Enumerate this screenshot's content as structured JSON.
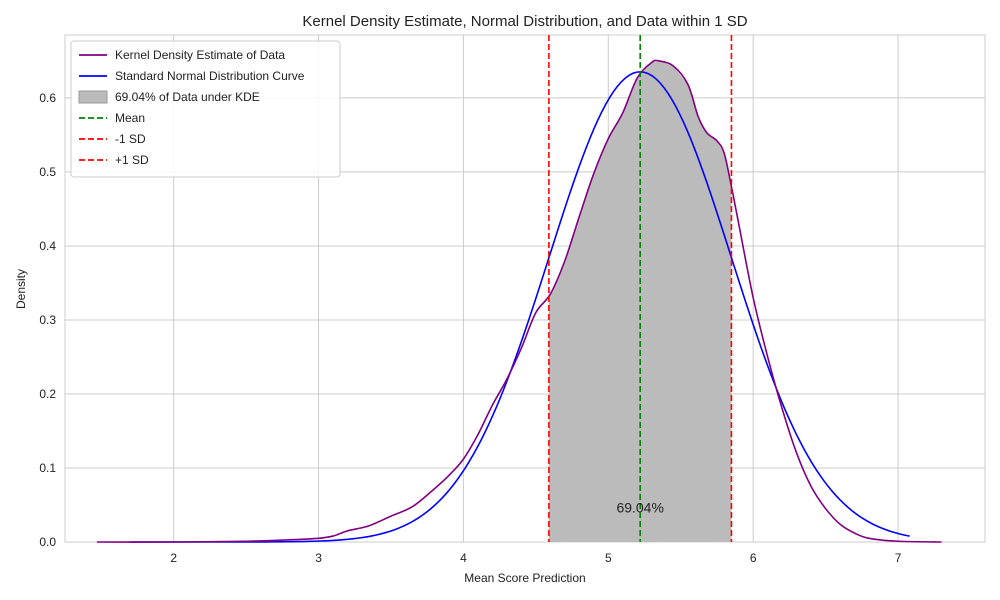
{
  "chart_data": {
    "type": "line",
    "title": "Kernel Density Estimate, Normal Distribution, and Data within 1 SD",
    "xlabel": "Mean Score Prediction",
    "ylabel": "Density",
    "xlim": [
      1.25,
      7.6
    ],
    "ylim": [
      0,
      0.685
    ],
    "xticks": [
      2,
      3,
      4,
      5,
      6,
      7
    ],
    "yticks": [
      0.0,
      0.1,
      0.2,
      0.3,
      0.4,
      0.5,
      0.6
    ],
    "grid": true,
    "legend_position": "top-left",
    "series": [
      {
        "name": "Kernel Density Estimate of Data",
        "kind": "line",
        "color": "#800080",
        "x": [
          1.47,
          2.0,
          2.5,
          2.8,
          3.0,
          3.1,
          3.2,
          3.35,
          3.5,
          3.65,
          3.8,
          3.9,
          4.0,
          4.1,
          4.2,
          4.3,
          4.4,
          4.5,
          4.6,
          4.7,
          4.8,
          4.9,
          5.0,
          5.1,
          5.2,
          5.3,
          5.35,
          5.45,
          5.55,
          5.62,
          5.68,
          5.75,
          5.8,
          5.85,
          5.9,
          6.0,
          6.1,
          6.2,
          6.3,
          6.4,
          6.5,
          6.6,
          6.7,
          6.8,
          7.0,
          7.3
        ],
        "y": [
          0.0,
          0.0,
          0.001,
          0.003,
          0.005,
          0.008,
          0.015,
          0.022,
          0.035,
          0.048,
          0.072,
          0.09,
          0.112,
          0.145,
          0.185,
          0.22,
          0.262,
          0.31,
          0.335,
          0.38,
          0.44,
          0.498,
          0.545,
          0.58,
          0.627,
          0.648,
          0.65,
          0.643,
          0.618,
          0.575,
          0.553,
          0.542,
          0.525,
          0.48,
          0.43,
          0.33,
          0.25,
          0.18,
          0.12,
          0.075,
          0.045,
          0.024,
          0.012,
          0.005,
          0.001,
          0.0
        ]
      },
      {
        "name": "Standard Normal Distribution Curve",
        "kind": "line",
        "color": "#0000ff",
        "mean": 5.22,
        "sd": 0.628,
        "x_range": [
          1.7,
          7.08
        ]
      },
      {
        "name": "69.04% of Data under KDE",
        "kind": "fill",
        "color": "#bbbbbb",
        "x_from": 4.59,
        "x_to": 5.85
      },
      {
        "name": "Mean",
        "kind": "vline",
        "color": "#008000",
        "x": 5.22
      },
      {
        "name": "-1 SD",
        "kind": "vline",
        "color": "#ff0000",
        "x": 4.59
      },
      {
        "name": "+1 SD",
        "kind": "vline",
        "color": "#ff0000",
        "x": 5.85
      }
    ],
    "annotations": [
      {
        "text": "69.04%",
        "x": 5.22,
        "y": 0.04
      }
    ]
  }
}
